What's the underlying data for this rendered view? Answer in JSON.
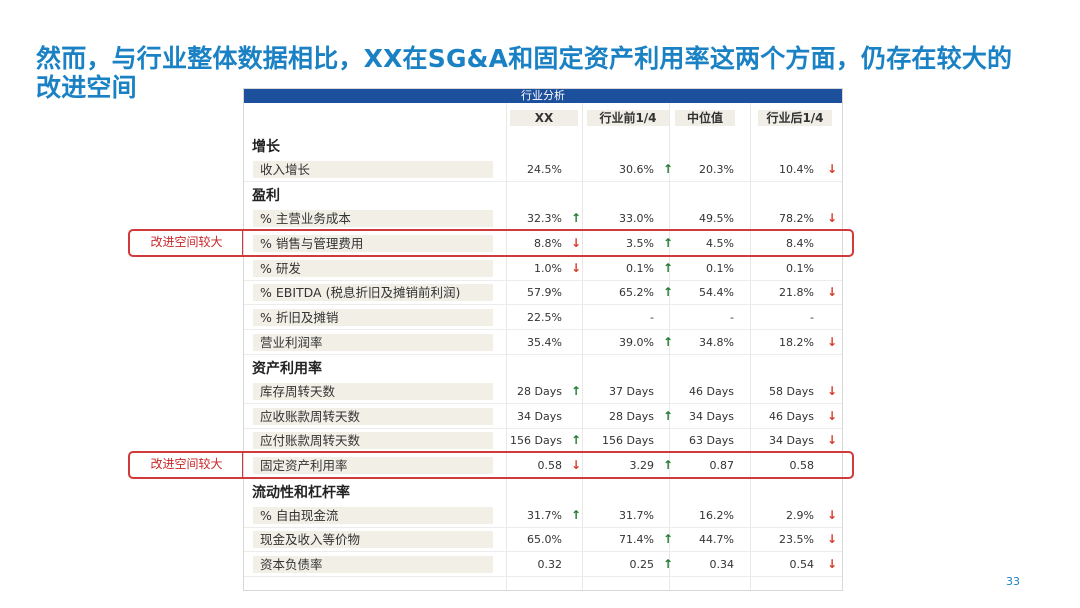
{
  "slide": {
    "title": "然而，与行业整体数据相比，XX在SG&A和固定资产利用率这两个方面，仍存在较大的改进空间",
    "page_number": "33",
    "callout_label": "改进空间较大"
  },
  "table": {
    "banner": "行业分析",
    "columns": [
      "XX",
      "行业前1/4",
      "中位值",
      "行业后1/4"
    ],
    "sections": [
      {
        "name": "增长",
        "rows": [
          {
            "label": "收入增长",
            "cells": [
              {
                "v": "24.5%",
                "a": ""
              },
              {
                "v": "30.6%",
                "a": "up"
              },
              {
                "v": "20.3%",
                "a": ""
              },
              {
                "v": "10.4%",
                "a": "down"
              }
            ]
          }
        ]
      },
      {
        "name": "盈利",
        "rows": [
          {
            "label": "% 主营业务成本",
            "cells": [
              {
                "v": "32.3%",
                "a": "up"
              },
              {
                "v": "33.0%",
                "a": ""
              },
              {
                "v": "49.5%",
                "a": ""
              },
              {
                "v": "78.2%",
                "a": "down"
              }
            ]
          },
          {
            "label": "% 销售与管理费用",
            "highlight": true,
            "cells": [
              {
                "v": "8.8%",
                "a": "down"
              },
              {
                "v": "3.5%",
                "a": "up"
              },
              {
                "v": "4.5%",
                "a": ""
              },
              {
                "v": "8.4%",
                "a": ""
              }
            ]
          },
          {
            "label": "% 研发",
            "cells": [
              {
                "v": "1.0%",
                "a": "down"
              },
              {
                "v": "0.1%",
                "a": "up"
              },
              {
                "v": "0.1%",
                "a": ""
              },
              {
                "v": "0.1%",
                "a": ""
              }
            ]
          },
          {
            "label": "% EBITDA (税息折旧及摊销前利润)",
            "cells": [
              {
                "v": "57.9%",
                "a": ""
              },
              {
                "v": "65.2%",
                "a": "up"
              },
              {
                "v": "54.4%",
                "a": ""
              },
              {
                "v": "21.8%",
                "a": "down"
              }
            ]
          },
          {
            "label": "% 折旧及摊销",
            "cells": [
              {
                "v": "22.5%",
                "a": ""
              },
              {
                "v": "-",
                "a": ""
              },
              {
                "v": "-",
                "a": ""
              },
              {
                "v": "-",
                "a": ""
              }
            ]
          },
          {
            "label": "营业利润率",
            "cells": [
              {
                "v": "35.4%",
                "a": ""
              },
              {
                "v": "39.0%",
                "a": "up"
              },
              {
                "v": "34.8%",
                "a": ""
              },
              {
                "v": "18.2%",
                "a": "down"
              }
            ]
          }
        ]
      },
      {
        "name": "资产利用率",
        "rows": [
          {
            "label": "库存周转天数",
            "cells": [
              {
                "v": "28 Days",
                "a": "up"
              },
              {
                "v": "37 Days",
                "a": ""
              },
              {
                "v": "46 Days",
                "a": ""
              },
              {
                "v": "58 Days",
                "a": "down"
              }
            ]
          },
          {
            "label": "应收账款周转天数",
            "cells": [
              {
                "v": "34 Days",
                "a": ""
              },
              {
                "v": "28 Days",
                "a": "up"
              },
              {
                "v": "34 Days",
                "a": ""
              },
              {
                "v": "46 Days",
                "a": "down"
              }
            ]
          },
          {
            "label": "应付账款周转天数",
            "cells": [
              {
                "v": "156 Days",
                "a": "up"
              },
              {
                "v": "156 Days",
                "a": ""
              },
              {
                "v": "63 Days",
                "a": ""
              },
              {
                "v": "34 Days",
                "a": "down"
              }
            ]
          },
          {
            "label": "固定资产利用率",
            "highlight": true,
            "cells": [
              {
                "v": "0.58",
                "a": "down"
              },
              {
                "v": "3.29",
                "a": "up"
              },
              {
                "v": "0.87",
                "a": ""
              },
              {
                "v": "0.58",
                "a": ""
              }
            ]
          }
        ]
      },
      {
        "name": "流动性和杠杆率",
        "rows": [
          {
            "label": "% 自由现金流",
            "cells": [
              {
                "v": "31.7%",
                "a": "up"
              },
              {
                "v": "31.7%",
                "a": ""
              },
              {
                "v": "16.2%",
                "a": ""
              },
              {
                "v": "2.9%",
                "a": "down"
              }
            ]
          },
          {
            "label": "现金及收入等价物",
            "cells": [
              {
                "v": "65.0%",
                "a": ""
              },
              {
                "v": "71.4%",
                "a": "up"
              },
              {
                "v": "44.7%",
                "a": ""
              },
              {
                "v": "23.5%",
                "a": "down"
              }
            ]
          },
          {
            "label": "资本负债率",
            "cells": [
              {
                "v": "0.32",
                "a": ""
              },
              {
                "v": "0.25",
                "a": "up"
              },
              {
                "v": "0.34",
                "a": ""
              },
              {
                "v": "0.54",
                "a": "down"
              }
            ]
          }
        ]
      }
    ]
  },
  "colors": {
    "title": "#1a82c4",
    "banner": "#1c4f9c",
    "up_arrow": "#1e7a2e",
    "down_arrow": "#d93a2a",
    "highlight_box": "#d03a3a"
  },
  "icons": {
    "up": "up-arrow-icon",
    "down": "down-arrow-icon"
  }
}
